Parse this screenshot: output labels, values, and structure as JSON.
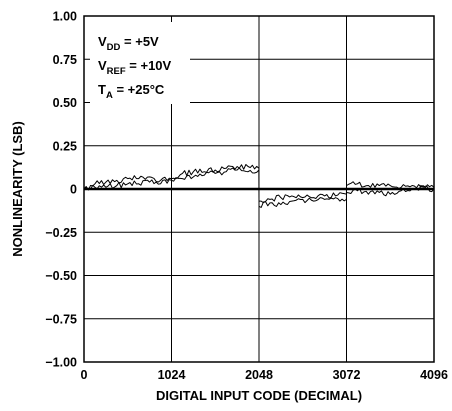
{
  "chart_data": {
    "type": "line",
    "title": "",
    "xlabel": "DIGITAL INPUT CODE (DECIMAL)",
    "ylabel": "NONLINEARITY (LSB)",
    "xlim": [
      0,
      4096
    ],
    "ylim": [
      -1.0,
      1.0
    ],
    "x_ticks": [
      0,
      1024,
      2048,
      3072,
      4096
    ],
    "x_tick_labels": [
      "0",
      "1024",
      "2048",
      "3072",
      "4096"
    ],
    "y_ticks": [
      1.0,
      0.75,
      0.5,
      0.25,
      0,
      -0.25,
      -0.5,
      -0.75,
      -1.0
    ],
    "y_tick_labels": [
      "1.00",
      "0.75",
      "0.50",
      "0.25",
      "0",
      "−0.25",
      "−0.50",
      "−0.75",
      "−1.00"
    ],
    "grid": true,
    "conditions": [
      {
        "main": "V",
        "sub": "DD",
        "rest": " = +5V"
      },
      {
        "main": "V",
        "sub": "REF",
        "rest": " = +10V"
      },
      {
        "main": "T",
        "sub": "A",
        "rest": " = +25°C"
      }
    ],
    "series": [
      {
        "x": [
          0,
          128,
          256,
          384,
          512,
          640,
          768,
          896,
          1024,
          1152,
          1280,
          1408,
          1536,
          1664,
          1792,
          1920,
          2047,
          2048,
          2176,
          2304,
          2432,
          2560,
          2688,
          2816,
          2944,
          3071,
          3072,
          3200,
          3328,
          3456,
          3584,
          3712,
          3840,
          3968,
          4095
        ],
        "y": [
          0.0,
          0.03,
          0.04,
          0.05,
          0.06,
          0.06,
          0.07,
          0.05,
          0.06,
          0.09,
          0.1,
          0.1,
          0.11,
          0.12,
          0.13,
          0.13,
          0.12,
          -0.07,
          -0.06,
          -0.05,
          -0.04,
          -0.05,
          -0.05,
          -0.04,
          -0.04,
          -0.03,
          0.02,
          0.03,
          0.02,
          0.02,
          0.02,
          0.01,
          0.02,
          0.02,
          0.01
        ]
      },
      {
        "x": [
          0,
          128,
          256,
          384,
          512,
          640,
          768,
          896,
          1024,
          1152,
          1280,
          1408,
          1536,
          1664,
          1792,
          1920,
          2047,
          2048,
          2176,
          2304,
          2432,
          2560,
          2688,
          2816,
          2944,
          3071,
          3072,
          3200,
          3328,
          3456,
          3584,
          3712,
          3840,
          3968,
          4095
        ],
        "y": [
          0.0,
          0.01,
          0.01,
          0.02,
          0.03,
          0.03,
          0.04,
          0.03,
          0.05,
          0.06,
          0.07,
          0.08,
          0.09,
          0.1,
          0.11,
          0.1,
          0.11,
          -0.1,
          -0.08,
          -0.09,
          -0.07,
          -0.06,
          -0.07,
          -0.06,
          -0.05,
          -0.06,
          -0.02,
          -0.01,
          -0.03,
          -0.02,
          -0.03,
          -0.01,
          0.0,
          0.01,
          0.0
        ]
      }
    ]
  }
}
